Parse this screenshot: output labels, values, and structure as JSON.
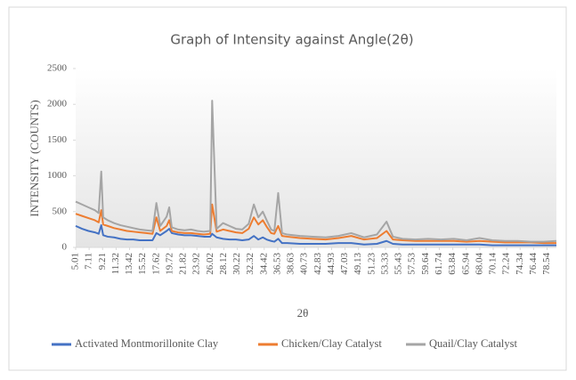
{
  "chart_data": {
    "type": "line",
    "title": "Graph of Intensity against Angle(2θ)",
    "x_label": "2θ",
    "y_label": "INTENSITY (COUNTS)",
    "x": [
      5.01,
      6,
      7,
      8,
      8.6,
      9.0,
      9.3,
      10,
      11,
      12,
      13,
      14,
      15,
      16,
      17,
      17.6,
      18.2,
      19.2,
      19.6,
      20,
      21,
      22,
      23,
      24,
      25,
      26,
      26.3,
      27,
      28,
      29,
      30,
      31,
      32,
      32.8,
      33.5,
      34.2,
      34.8,
      35.5,
      36,
      36.6,
      37.2,
      38,
      40,
      42,
      44,
      46,
      48,
      50,
      52,
      53.5,
      54.5,
      56,
      58,
      60,
      62,
      64,
      66,
      68,
      70,
      72,
      74,
      76,
      78,
      80
    ],
    "series": [
      {
        "name": "Activated Montmorillonite Clay",
        "color": "#4472c4",
        "values": [
          300,
          260,
          230,
          210,
          190,
          310,
          170,
          150,
          140,
          120,
          110,
          110,
          100,
          100,
          100,
          200,
          170,
          230,
          260,
          200,
          180,
          170,
          170,
          160,
          150,
          150,
          190,
          140,
          120,
          110,
          110,
          100,
          110,
          160,
          110,
          140,
          110,
          90,
          80,
          120,
          60,
          60,
          50,
          50,
          50,
          60,
          60,
          40,
          50,
          90,
          50,
          40,
          40,
          40,
          40,
          40,
          40,
          40,
          30,
          30,
          30,
          30,
          30,
          30
        ]
      },
      {
        "name": "Chicken/Clay Catalyst",
        "color": "#ed7d31",
        "values": [
          470,
          440,
          410,
          380,
          350,
          520,
          320,
          300,
          270,
          250,
          230,
          220,
          210,
          200,
          190,
          420,
          230,
          300,
          380,
          230,
          210,
          200,
          200,
          190,
          180,
          190,
          600,
          220,
          250,
          230,
          210,
          200,
          260,
          420,
          320,
          380,
          290,
          200,
          190,
          300,
          160,
          150,
          130,
          120,
          110,
          130,
          160,
          110,
          130,
          230,
          110,
          100,
          90,
          90,
          90,
          90,
          80,
          90,
          80,
          70,
          70,
          70,
          60,
          60
        ]
      },
      {
        "name": "Quail/Clay Catalyst",
        "color": "#a5a5a5",
        "values": [
          640,
          600,
          560,
          520,
          480,
          1060,
          420,
          380,
          340,
          310,
          290,
          270,
          250,
          240,
          230,
          620,
          300,
          430,
          560,
          280,
          250,
          240,
          250,
          230,
          220,
          230,
          2050,
          260,
          340,
          300,
          260,
          250,
          330,
          600,
          420,
          500,
          380,
          250,
          230,
          760,
          200,
          180,
          160,
          150,
          140,
          160,
          200,
          140,
          180,
          360,
          150,
          120,
          110,
          120,
          110,
          120,
          100,
          130,
          100,
          90,
          90,
          80,
          80,
          90
        ]
      }
    ],
    "xlim": [
      5.01,
      80
    ],
    "xticks": [
      5.01,
      7.11,
      9.21,
      11.32,
      13.42,
      15.52,
      17.62,
      19.72,
      21.82,
      23.92,
      26.02,
      28.12,
      30.22,
      32.32,
      34.42,
      36.53,
      38.63,
      40.73,
      42.83,
      44.93,
      47.03,
      49.13,
      51.23,
      53.33,
      55.43,
      57.53,
      59.64,
      61.74,
      63.84,
      65.94,
      68.04,
      70.14,
      72.24,
      74.34,
      76.44,
      78.54
    ],
    "ylim": [
      0,
      2500
    ],
    "yticks": [
      0,
      500,
      1000,
      1500,
      2000,
      2500
    ],
    "legend": "bottom"
  }
}
